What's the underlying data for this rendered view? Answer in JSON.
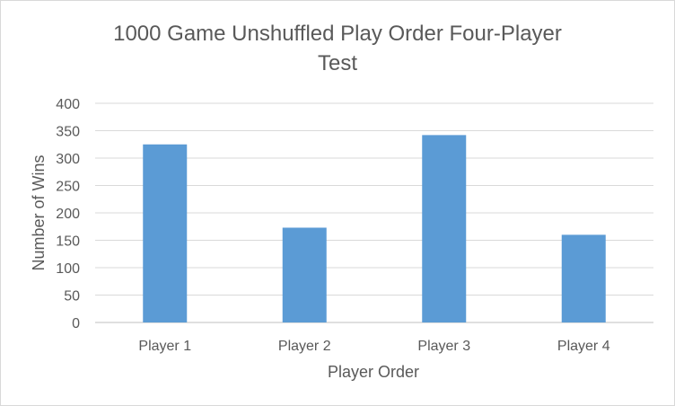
{
  "chart_data": {
    "type": "bar",
    "title_lines": [
      "1000 Game Unshuffled Play Order Four-Player",
      "Test"
    ],
    "categories": [
      "Player 1",
      "Player 2",
      "Player 3",
      "Player 4"
    ],
    "series": [
      {
        "values": [
          325,
          173,
          342,
          160
        ],
        "color": "#5b9bd5"
      }
    ],
    "xlabel": "Player Order",
    "ylabel": "Number of Wins",
    "ylim": [
      0,
      400
    ],
    "yticks": [
      "0",
      "50",
      "100",
      "150",
      "200",
      "250",
      "300",
      "350",
      "400"
    ],
    "grid": true,
    "legend": "none"
  }
}
